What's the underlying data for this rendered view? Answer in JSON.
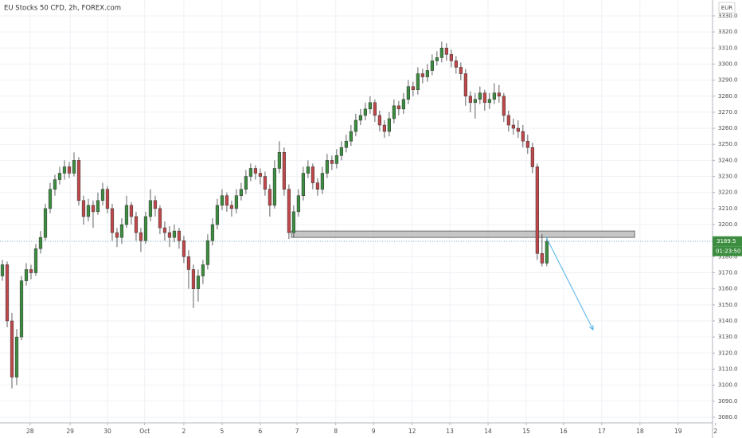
{
  "chart_data": {
    "type": "candlestick",
    "title": "EU Stocks 50 CFD, 2h, FOREX.com",
    "currency": "EUR",
    "last_price": 3189.5,
    "countdown": "01:23:50",
    "colors": {
      "up": "#3c8d3f",
      "down": "#c0484b",
      "zone": "#b8b8b8",
      "arrow": "#4fb3e8"
    },
    "grid": true,
    "ylim": [
      3076.5,
      3339.9
    ],
    "yticks": [
      {
        "value": 3080,
        "label": "3080.0"
      },
      {
        "value": 3090,
        "label": "3090.0"
      },
      {
        "value": 3100,
        "label": "3100.0"
      },
      {
        "value": 3110,
        "label": "3110.0"
      },
      {
        "value": 3120,
        "label": "3120.0"
      },
      {
        "value": 3130,
        "label": "3130.0"
      },
      {
        "value": 3140,
        "label": "3140.0"
      },
      {
        "value": 3150,
        "label": "3150.0"
      },
      {
        "value": 3160,
        "label": "3160.0"
      },
      {
        "value": 3170,
        "label": "3170.0"
      },
      {
        "value": 3180,
        "label": "3180.0"
      },
      {
        "value": 3190,
        "label": "3190.0"
      },
      {
        "value": 3200,
        "label": "3200.0"
      },
      {
        "value": 3210,
        "label": "3210.0"
      },
      {
        "value": 3220,
        "label": "3220.0"
      },
      {
        "value": 3230,
        "label": "3230.0"
      },
      {
        "value": 3240,
        "label": "3240.0"
      },
      {
        "value": 3250,
        "label": "3250.0"
      },
      {
        "value": 3260,
        "label": "3260.0"
      },
      {
        "value": 3270,
        "label": "3270.0"
      },
      {
        "value": 3280,
        "label": "3280.0"
      },
      {
        "value": 3290,
        "label": "3290.0"
      },
      {
        "value": 3300,
        "label": "3300.0"
      },
      {
        "value": 3310,
        "label": "3310.0"
      },
      {
        "value": 3320,
        "label": "3320.0"
      },
      {
        "value": 3330,
        "label": "3330.0"
      }
    ],
    "xlim": [
      -0.5,
      148.7
    ],
    "xticks": [
      {
        "value": 5.8,
        "label": "28"
      },
      {
        "value": 14.2,
        "label": "29"
      },
      {
        "value": 22,
        "label": "30"
      },
      {
        "value": 29.8,
        "label": "Oct"
      },
      {
        "value": 38,
        "label": "2"
      },
      {
        "value": 46,
        "label": "5"
      },
      {
        "value": 54,
        "label": "6"
      },
      {
        "value": 61.7,
        "label": "7"
      },
      {
        "value": 69.8,
        "label": "8"
      },
      {
        "value": 77.7,
        "label": "9"
      },
      {
        "value": 85.8,
        "label": "12"
      },
      {
        "value": 93.7,
        "label": "13"
      },
      {
        "value": 101.7,
        "label": "14"
      },
      {
        "value": 109.7,
        "label": "15"
      },
      {
        "value": 117.5,
        "label": "16"
      },
      {
        "value": 125.5,
        "label": "17"
      },
      {
        "value": 133.5,
        "label": "18"
      },
      {
        "value": 141.5,
        "label": "19"
      },
      {
        "value": 149.3,
        "label": "2"
      }
    ],
    "zone": {
      "x": [
        60.5,
        132.4
      ],
      "y": [
        3196,
        3192
      ]
    },
    "arrow": {
      "x": [
        113.8,
        123.7
      ],
      "y": [
        3192.5,
        3134.5
      ]
    },
    "ohlc": [
      [
        3168,
        3178,
        3165,
        3175
      ],
      [
        3175,
        3177,
        3136,
        3140
      ],
      [
        3140,
        3145,
        3098,
        3105
      ],
      [
        3105,
        3135,
        3100,
        3130
      ],
      [
        3130,
        3168,
        3128,
        3165
      ],
      [
        3165,
        3176,
        3162,
        3172
      ],
      [
        3172,
        3175,
        3166,
        3170
      ],
      [
        3170,
        3188,
        3168,
        3185
      ],
      [
        3185,
        3196,
        3182,
        3192
      ],
      [
        3192,
        3213,
        3190,
        3210
      ],
      [
        3210,
        3226,
        3207,
        3222
      ],
      [
        3222,
        3231,
        3218,
        3228
      ],
      [
        3228,
        3236,
        3225,
        3232
      ],
      [
        3232,
        3240,
        3228,
        3236
      ],
      [
        3236,
        3239,
        3229,
        3232
      ],
      [
        3232,
        3245,
        3230,
        3240
      ],
      [
        3240,
        3242,
        3212,
        3215
      ],
      [
        3215,
        3218,
        3200,
        3205
      ],
      [
        3205,
        3216,
        3202,
        3212
      ],
      [
        3212,
        3215,
        3198,
        3208
      ],
      [
        3208,
        3220,
        3206,
        3215
      ],
      [
        3215,
        3226,
        3212,
        3222
      ],
      [
        3222,
        3224,
        3207,
        3210
      ],
      [
        3210,
        3213,
        3190,
        3195
      ],
      [
        3195,
        3198,
        3186,
        3192
      ],
      [
        3192,
        3204,
        3188,
        3200
      ],
      [
        3200,
        3218,
        3198,
        3212
      ],
      [
        3212,
        3214,
        3200,
        3205
      ],
      [
        3205,
        3208,
        3190,
        3195
      ],
      [
        3195,
        3198,
        3183,
        3190
      ],
      [
        3190,
        3208,
        3188,
        3205
      ],
      [
        3205,
        3222,
        3202,
        3215
      ],
      [
        3215,
        3218,
        3205,
        3210
      ],
      [
        3210,
        3212,
        3194,
        3198
      ],
      [
        3198,
        3202,
        3190,
        3195
      ],
      [
        3195,
        3199,
        3186,
        3192
      ],
      [
        3192,
        3200,
        3189,
        3196
      ],
      [
        3196,
        3198,
        3185,
        3190
      ],
      [
        3190,
        3193,
        3176,
        3180
      ],
      [
        3180,
        3184,
        3160,
        3172
      ],
      [
        3172,
        3175,
        3148,
        3160
      ],
      [
        3160,
        3172,
        3152,
        3168
      ],
      [
        3168,
        3178,
        3163,
        3175
      ],
      [
        3175,
        3194,
        3172,
        3190
      ],
      [
        3190,
        3204,
        3187,
        3200
      ],
      [
        3200,
        3216,
        3197,
        3212
      ],
      [
        3212,
        3222,
        3209,
        3218
      ],
      [
        3218,
        3220,
        3208,
        3212
      ],
      [
        3212,
        3215,
        3205,
        3210
      ],
      [
        3210,
        3222,
        3207,
        3218
      ],
      [
        3218,
        3226,
        3215,
        3222
      ],
      [
        3222,
        3234,
        3219,
        3230
      ],
      [
        3230,
        3238,
        3227,
        3235
      ],
      [
        3235,
        3237,
        3228,
        3232
      ],
      [
        3232,
        3235,
        3225,
        3230
      ],
      [
        3230,
        3233,
        3218,
        3222
      ],
      [
        3222,
        3225,
        3205,
        3212
      ],
      [
        3212,
        3240,
        3210,
        3235
      ],
      [
        3235,
        3252,
        3232,
        3245
      ],
      [
        3245,
        3248,
        3218,
        3222
      ],
      [
        3222,
        3225,
        3191,
        3195
      ],
      [
        3195,
        3212,
        3192,
        3208
      ],
      [
        3208,
        3222,
        3205,
        3218
      ],
      [
        3218,
        3236,
        3215,
        3232
      ],
      [
        3232,
        3240,
        3229,
        3236
      ],
      [
        3236,
        3238,
        3222,
        3226
      ],
      [
        3226,
        3229,
        3218,
        3222
      ],
      [
        3222,
        3236,
        3219,
        3232
      ],
      [
        3232,
        3244,
        3229,
        3240
      ],
      [
        3240,
        3243,
        3234,
        3238
      ],
      [
        3238,
        3247,
        3235,
        3243
      ],
      [
        3243,
        3252,
        3240,
        3248
      ],
      [
        3248,
        3256,
        3245,
        3252
      ],
      [
        3252,
        3262,
        3249,
        3258
      ],
      [
        3258,
        3269,
        3255,
        3265
      ],
      [
        3265,
        3272,
        3262,
        3268
      ],
      [
        3268,
        3276,
        3265,
        3272
      ],
      [
        3272,
        3280,
        3269,
        3276
      ],
      [
        3276,
        3278,
        3264,
        3268
      ],
      [
        3268,
        3271,
        3258,
        3262
      ],
      [
        3262,
        3265,
        3254,
        3258
      ],
      [
        3258,
        3270,
        3255,
        3266
      ],
      [
        3266,
        3278,
        3263,
        3274
      ],
      [
        3274,
        3277,
        3268,
        3272
      ],
      [
        3272,
        3282,
        3269,
        3278
      ],
      [
        3278,
        3290,
        3275,
        3286
      ],
      [
        3286,
        3289,
        3280,
        3284
      ],
      [
        3284,
        3298,
        3281,
        3294
      ],
      [
        3294,
        3297,
        3288,
        3292
      ],
      [
        3292,
        3300,
        3289,
        3296
      ],
      [
        3296,
        3306,
        3293,
        3302
      ],
      [
        3302,
        3308,
        3299,
        3304
      ],
      [
        3304,
        3314,
        3301,
        3310
      ],
      [
        3310,
        3313,
        3302,
        3306
      ],
      [
        3306,
        3309,
        3298,
        3302
      ],
      [
        3302,
        3305,
        3294,
        3298
      ],
      [
        3298,
        3301,
        3290,
        3294
      ],
      [
        3294,
        3297,
        3274,
        3280
      ],
      [
        3280,
        3283,
        3270,
        3276
      ],
      [
        3276,
        3282,
        3266,
        3278
      ],
      [
        3278,
        3286,
        3275,
        3282
      ],
      [
        3282,
        3284,
        3271,
        3276
      ],
      [
        3276,
        3282,
        3272,
        3278
      ],
      [
        3278,
        3288,
        3275,
        3282
      ],
      [
        3282,
        3287,
        3276,
        3280
      ],
      [
        3280,
        3282,
        3264,
        3268
      ],
      [
        3268,
        3271,
        3258,
        3262
      ],
      [
        3262,
        3266,
        3256,
        3260
      ],
      [
        3260,
        3265,
        3254,
        3258
      ],
      [
        3258,
        3262,
        3248,
        3252
      ],
      [
        3252,
        3256,
        3244,
        3248
      ],
      [
        3248,
        3251,
        3232,
        3236
      ],
      [
        3236,
        3238,
        3178,
        3182
      ],
      [
        3182,
        3194,
        3174,
        3176
      ],
      [
        3176,
        3192,
        3174,
        3189.5
      ]
    ]
  }
}
